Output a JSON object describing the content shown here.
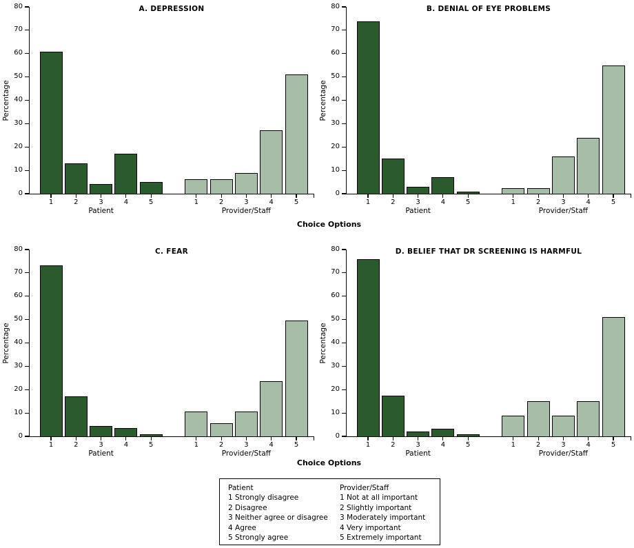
{
  "figure": {
    "background": "#ffffff",
    "ylabel": "Percentage",
    "xlabel": "Choice Options",
    "group_labels": [
      "Patient",
      "Provider/Staff"
    ],
    "y_ticks": [
      0,
      10,
      20,
      30,
      40,
      50,
      60,
      70,
      80
    ],
    "colors": {
      "patient_bar": "#2b5a2e",
      "provider_staff_bar": "#a8bda8",
      "axis": "#000000"
    }
  },
  "chart_data": [
    {
      "type": "bar",
      "title": "A. DEPRESSION",
      "xlabel": "Choice Options",
      "ylabel": "Percentage",
      "ylim": [
        0,
        80
      ],
      "grid": false,
      "categories": [
        "1",
        "2",
        "3",
        "4",
        "5"
      ],
      "series": [
        {
          "name": "Patient",
          "values": [
            60.7,
            13.1,
            4.0,
            17.0,
            5.1
          ]
        },
        {
          "name": "Provider/Staff",
          "values": [
            6.1,
            6.1,
            8.9,
            27.3,
            51.2
          ]
        }
      ]
    },
    {
      "type": "bar",
      "title": "B. DENIAL OF EYE PROBLEMS",
      "xlabel": "Choice Options",
      "ylabel": "Percentage",
      "ylim": [
        0,
        80
      ],
      "grid": false,
      "categories": [
        "1",
        "2",
        "3",
        "4",
        "5"
      ],
      "series": [
        {
          "name": "Patient",
          "values": [
            73.9,
            15.2,
            3.0,
            7.1,
            1.0
          ]
        },
        {
          "name": "Provider/Staff",
          "values": [
            2.4,
            2.4,
            15.8,
            23.8,
            55.0
          ]
        }
      ]
    },
    {
      "type": "bar",
      "title": "C. FEAR",
      "xlabel": "Choice Options",
      "ylabel": "Percentage",
      "ylim": [
        0,
        80
      ],
      "grid": false,
      "categories": [
        "1",
        "2",
        "3",
        "4",
        "5"
      ],
      "series": [
        {
          "name": "Patient",
          "values": [
            73.2,
            17.0,
            4.5,
            3.6,
            0.9
          ]
        },
        {
          "name": "Provider/Staff",
          "values": [
            10.6,
            5.7,
            10.6,
            23.5,
            49.5
          ]
        }
      ]
    },
    {
      "type": "bar",
      "title": "D. BELIEF THAT DR SCREENING IS HARMFUL",
      "xlabel": "Choice Options",
      "ylabel": "Percentage",
      "ylim": [
        0,
        80
      ],
      "grid": false,
      "categories": [
        "1",
        "2",
        "3",
        "4",
        "5"
      ],
      "series": [
        {
          "name": "Patient",
          "values": [
            75.9,
            17.5,
            2.1,
            3.1,
            1.0
          ]
        },
        {
          "name": "Provider/Staff",
          "values": [
            8.9,
            15.1,
            8.9,
            15.1,
            51.2
          ]
        }
      ]
    }
  ],
  "legend": {
    "columns": [
      {
        "header": "Patient",
        "items": [
          "1 Strongly disagree",
          "2 Disagree",
          "3 Neither agree or disagree",
          "4 Agree",
          "5 Strongly agree"
        ]
      },
      {
        "header": "Provider/Staff",
        "items": [
          "1 Not at all important",
          "2 Slightly important",
          "3 Moderately important",
          "4 Very important",
          "5 Extremely important"
        ]
      }
    ]
  }
}
